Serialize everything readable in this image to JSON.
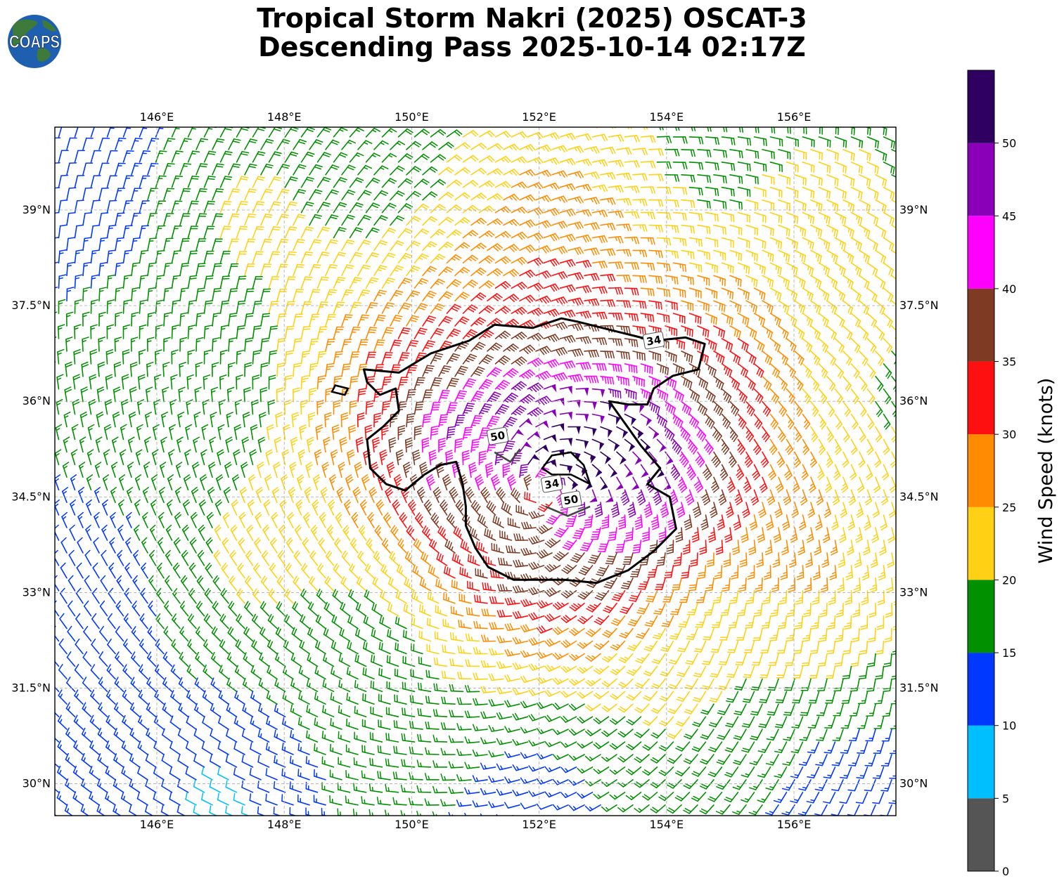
{
  "title": {
    "line1": "Tropical Storm Nakri (2025) OSCAT-3",
    "line2": "Descending Pass 2025-10-14 02:17Z"
  },
  "logo": {
    "text": "COAPS",
    "icon": "globe-icon",
    "ocean_color": "#1f5fb0",
    "land_color": "#3e7a3a"
  },
  "map": {
    "lon_range": [
      144.4,
      157.6
    ],
    "lat_range": [
      29.5,
      40.3
    ],
    "lon_ticks": [
      "146°E",
      "148°E",
      "150°E",
      "152°E",
      "154°E",
      "156°E"
    ],
    "lat_ticks": [
      "30°N",
      "31.5°N",
      "33°N",
      "34.5°N",
      "36°N",
      "37.5°N",
      "39°N"
    ],
    "grid": true,
    "storm_center": {
      "lon": 152.1,
      "lat": 34.6
    },
    "contour_labels": [
      {
        "text": "34",
        "lon": 153.8,
        "lat": 36.95
      },
      {
        "text": "50",
        "lon": 151.35,
        "lat": 35.45
      },
      {
        "text": "34",
        "lon": 152.2,
        "lat": 34.7
      },
      {
        "text": "50",
        "lon": 152.5,
        "lat": 34.45
      }
    ]
  },
  "colorbar": {
    "label": "Wind Speed (knots)",
    "ticks": [
      "0",
      "5",
      "10",
      "15",
      "20",
      "25",
      "30",
      "35",
      "40",
      "45",
      "50"
    ],
    "bins": [
      {
        "min": 0,
        "max": 5,
        "color": "#555555"
      },
      {
        "min": 5,
        "max": 10,
        "color": "#00bfff"
      },
      {
        "min": 10,
        "max": 15,
        "color": "#0038ff"
      },
      {
        "min": 15,
        "max": 20,
        "color": "#009000"
      },
      {
        "min": 20,
        "max": 25,
        "color": "#ffd014"
      },
      {
        "min": 25,
        "max": 30,
        "color": "#ff8c00"
      },
      {
        "min": 30,
        "max": 35,
        "color": "#ff1010"
      },
      {
        "min": 35,
        "max": 40,
        "color": "#7f3a24"
      },
      {
        "min": 40,
        "max": 45,
        "color": "#ff00ff"
      },
      {
        "min": 45,
        "max": 50,
        "color": "#8a00b8"
      },
      {
        "min": 50,
        "max": 55,
        "color": "#300060"
      }
    ]
  }
}
